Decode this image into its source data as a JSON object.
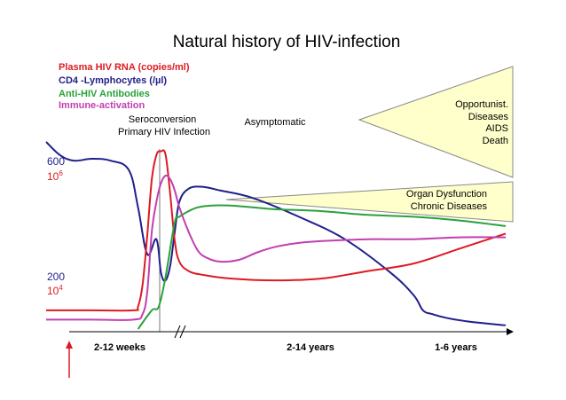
{
  "colors": {
    "red": "#dd1a22",
    "blue": "#1f1f8c",
    "green": "#2aa13a",
    "magenta": "#c23fb0",
    "triangle_fill": "#ffffcc"
  },
  "chart_data": {
    "type": "line",
    "title": "Natural history of HIV-infection",
    "legend": [
      {
        "label": "Plasma HIV RNA (copies/ml)",
        "color": "#dd1a22"
      },
      {
        "label": "CD4 -Lymphocytes (/µl)",
        "color": "#1f1f8c"
      },
      {
        "label": "Anti-HIV Antibodies",
        "color": "#2aa13a"
      },
      {
        "label": "Immune-activation",
        "color": "#c23fb0"
      }
    ],
    "y_ticks": [
      {
        "label": "600",
        "color": "#1f1f8c"
      },
      {
        "label": "10",
        "exp": "6",
        "color": "#dd1a22"
      },
      {
        "label": "200",
        "color": "#1f1f8c"
      },
      {
        "label": "10",
        "exp": "4",
        "color": "#dd1a22"
      }
    ],
    "x_segments": [
      "2-12 weeks",
      "2-14 years",
      "1-6 years"
    ],
    "phases": {
      "seroconversion": "Seroconversion",
      "primary": "Primary HIV Infection",
      "asymptomatic": "Asymptomatic"
    },
    "annotations": {
      "organ_line1": "Organ Dysfunction",
      "organ_line2": "Chronic Diseases",
      "opportunist": "Opportunist.",
      "diseases": "Diseases",
      "aids": "AIDS",
      "death": "Death"
    },
    "axis_break": "//",
    "x_range": [
      0,
      100
    ],
    "y_range": [
      0,
      100
    ],
    "series": [
      {
        "name": "CD4 -Lymphocytes (/µl)",
        "color": "#1f1f8c",
        "x": [
          0,
          3,
          6,
          10,
          14,
          18,
          20,
          22,
          24,
          25,
          26,
          27,
          28,
          29,
          31,
          34,
          38,
          45,
          55,
          65,
          75,
          80,
          82,
          84,
          87,
          92,
          100
        ],
        "y": [
          100,
          93,
          90,
          91,
          90,
          85,
          65,
          40,
          48,
          30,
          26,
          34,
          52,
          68,
          75,
          76,
          74,
          70,
          60,
          48,
          30,
          18,
          10,
          8,
          6,
          4,
          2
        ]
      },
      {
        "name": "Plasma HIV RNA (copies/ml)",
        "color": "#dd1a22",
        "x": [
          0,
          10,
          19,
          20,
          21,
          22,
          23,
          24,
          25,
          26,
          27,
          28,
          29,
          31,
          34,
          40,
          50,
          60,
          70,
          80,
          90,
          100
        ],
        "y": [
          10,
          10,
          10,
          12,
          24,
          50,
          80,
          93,
          95,
          93,
          72,
          47,
          36,
          31,
          29,
          27,
          26,
          27,
          31,
          35,
          43,
          51
        ]
      },
      {
        "name": "Anti-HIV Antibodies",
        "color": "#2aa13a",
        "x": [
          20,
          23,
          24.5,
          26,
          28,
          29,
          31,
          33,
          36,
          40,
          45,
          50,
          60,
          70,
          80,
          90,
          100
        ],
        "y": [
          0,
          10,
          12,
          28,
          57,
          60,
          63,
          65,
          66,
          66,
          65,
          64,
          63,
          61,
          60,
          58,
          55
        ]
      },
      {
        "name": "Immune-activation",
        "color": "#c23fb0",
        "x": [
          0,
          10,
          19,
          21,
          22,
          23,
          24,
          25,
          26,
          27,
          28,
          29,
          31,
          33,
          35,
          38,
          42,
          46,
          50,
          55,
          60,
          70,
          80,
          90,
          100
        ],
        "y": [
          5,
          5,
          5,
          8,
          20,
          52,
          68,
          78,
          82,
          80,
          74,
          65,
          52,
          42,
          38,
          36,
          37,
          41,
          44,
          46,
          47,
          48,
          48,
          49,
          49
        ]
      }
    ]
  }
}
